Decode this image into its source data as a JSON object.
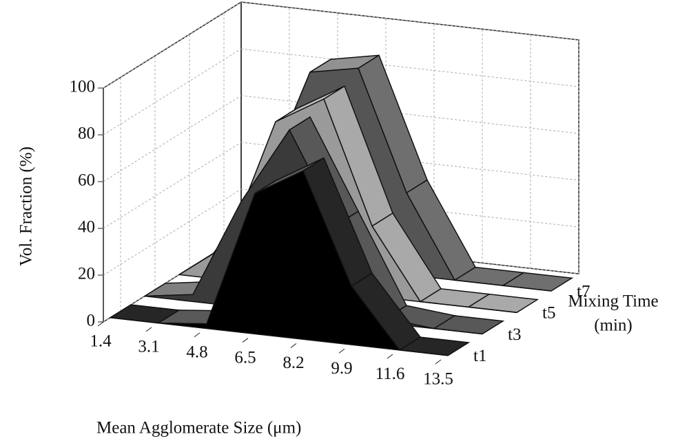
{
  "chart_data": {
    "type": "area3d",
    "y_label": "Vol. Fraction (%)",
    "x_label": "Mean Agglomerate Size (μm)",
    "z_label": [
      "Mixing Time",
      "(min)"
    ],
    "categories": [
      "1.4",
      "3.1",
      "4.8",
      "6.5",
      "8.2",
      "9.9",
      "11.6",
      "13.5"
    ],
    "series": [
      {
        "name": "t1",
        "color": "#000000",
        "values": [
          0,
          0,
          2,
          60,
          72,
          25,
          0,
          0
        ]
      },
      {
        "name": "t3",
        "color": "#3a3a3a",
        "values": [
          0,
          3,
          45,
          78,
          40,
          2,
          0,
          0
        ]
      },
      {
        "name": "t5",
        "color": "#9a9a9a",
        "values": [
          0,
          15,
          70,
          82,
          30,
          0,
          0,
          0
        ]
      },
      {
        "name": "t7",
        "color": "#555555",
        "values": [
          0,
          30,
          82,
          86,
          35,
          0,
          0,
          0
        ]
      }
    ],
    "ylim": [
      0,
      100
    ],
    "yticks": [
      0,
      20,
      40,
      60,
      80,
      100
    ],
    "grid": true
  }
}
